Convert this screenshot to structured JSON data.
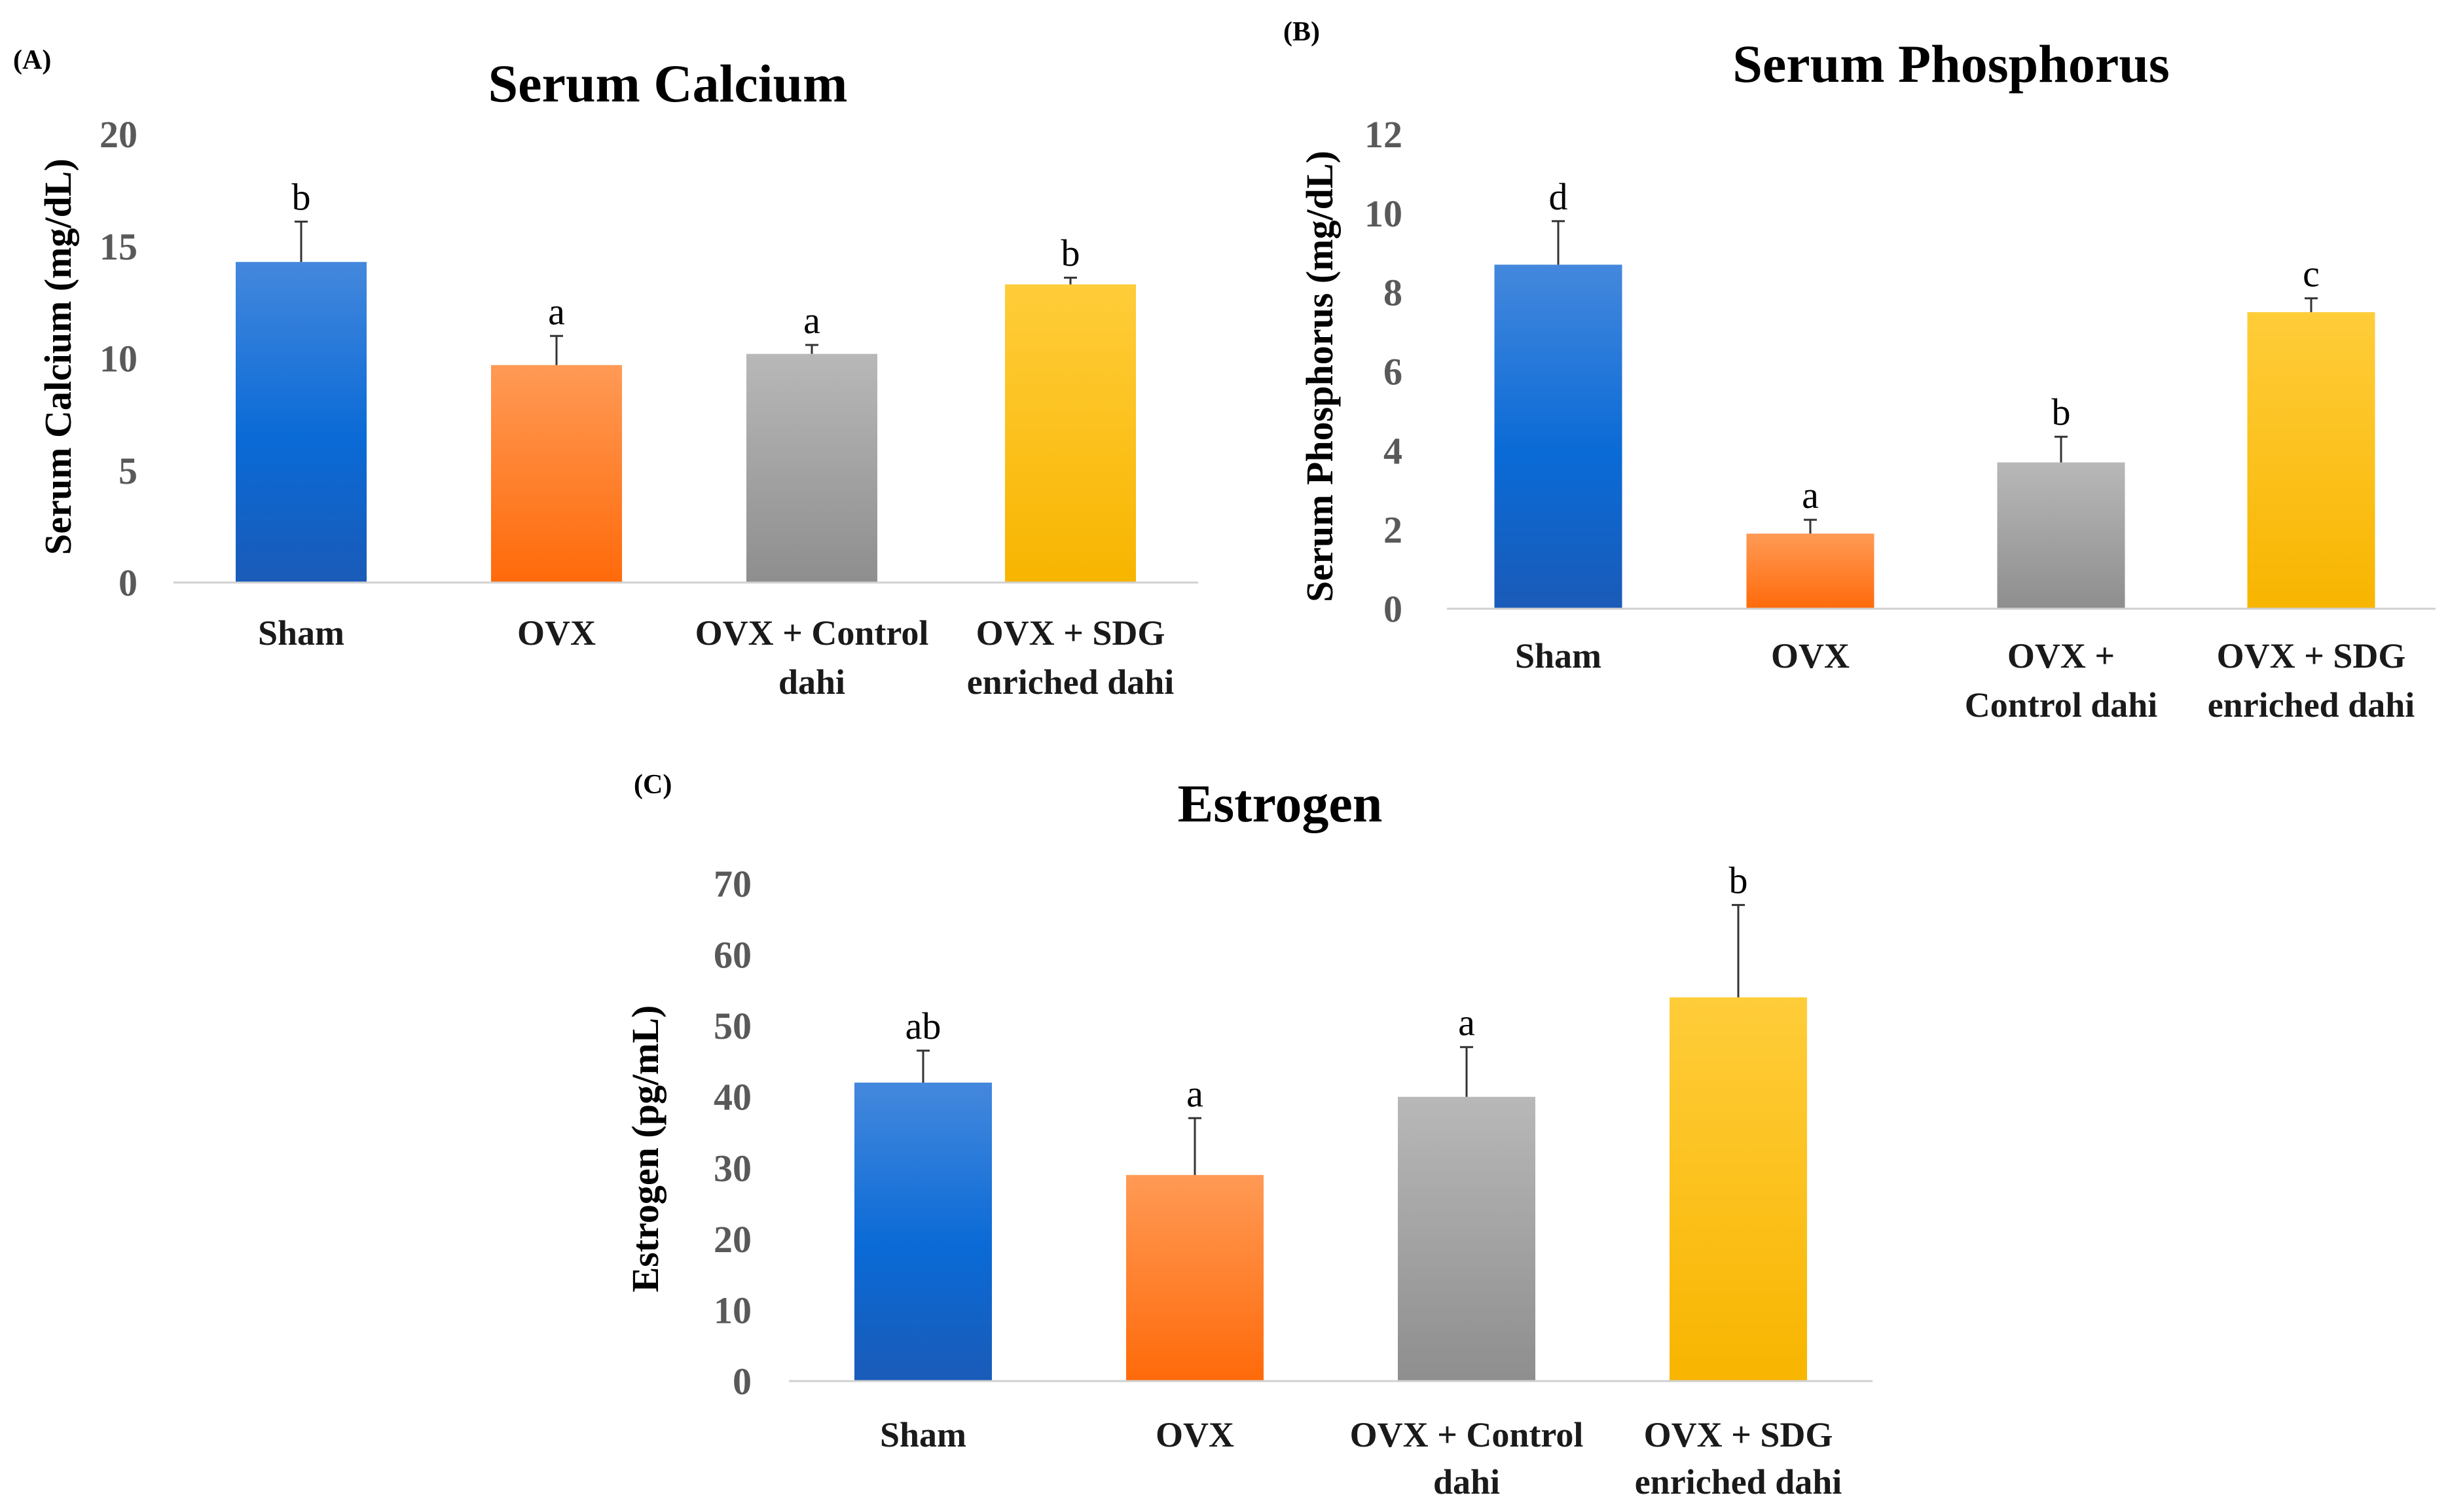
{
  "chart_data": [
    {
      "type": "bar",
      "panel": "(A)",
      "title": "Serum Calcium",
      "ylabel": "Serum  Calcium  (mg/dL)",
      "xlabel": "",
      "ylim": [
        0,
        20
      ],
      "yticks": [
        0,
        5,
        10,
        15,
        20
      ],
      "categories": [
        [
          "Sham"
        ],
        [
          "OVX"
        ],
        [
          "OVX + Control",
          "dahi"
        ],
        [
          "OVX + SDG",
          "enriched dahi"
        ]
      ],
      "values": [
        14.3,
        9.7,
        10.2,
        13.3
      ],
      "errors": [
        1.8,
        1.3,
        0.4,
        0.3
      ],
      "significance": [
        "b",
        "a",
        "a",
        "b"
      ],
      "colors": [
        "#1f6fd1",
        "#ff7a22",
        "#a5a5a5",
        "#ffc000"
      ]
    },
    {
      "type": "bar",
      "panel": "(B)",
      "title": "Serum Phosphorus",
      "ylabel": "Serum  Phosphorus  (mg/dL)",
      "xlabel": "",
      "ylim": [
        0,
        12
      ],
      "yticks": [
        0,
        2,
        4,
        6,
        8,
        10,
        12
      ],
      "categories": [
        [
          "Sham"
        ],
        [
          "OVX"
        ],
        [
          "OVX +",
          "Control dahi"
        ],
        [
          "OVX + SDG",
          "enriched dahi"
        ]
      ],
      "values": [
        8.7,
        1.9,
        3.7,
        7.5
      ],
      "errors": [
        1.1,
        0.35,
        0.65,
        0.35
      ],
      "significance": [
        "d",
        "a",
        "b",
        "c"
      ],
      "colors": [
        "#1f6fd1",
        "#ff7a22",
        "#a5a5a5",
        "#ffc000"
      ]
    },
    {
      "type": "bar",
      "panel": "(C)",
      "title": "Estrogen",
      "ylabel": "Estrogen (pg/mL)",
      "xlabel": "",
      "ylim": [
        0,
        70
      ],
      "yticks": [
        0,
        10,
        20,
        30,
        40,
        50,
        60,
        70
      ],
      "categories": [
        [
          "Sham"
        ],
        [
          "OVX"
        ],
        [
          "OVX + Control",
          "dahi"
        ],
        [
          "OVX + SDG",
          "enriched dahi"
        ]
      ],
      "values": [
        42,
        29,
        40,
        54
      ],
      "errors": [
        4.5,
        8,
        7,
        13
      ],
      "significance": [
        "ab",
        "a",
        "a",
        "b"
      ],
      "colors": [
        "#1f6fd1",
        "#ff7a22",
        "#a5a5a5",
        "#ffc000"
      ]
    }
  ]
}
